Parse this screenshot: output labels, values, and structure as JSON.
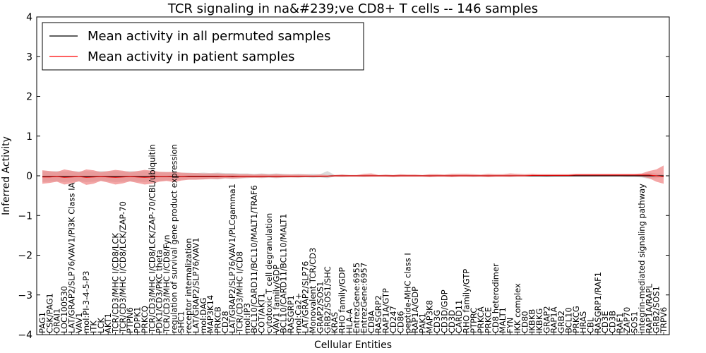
{
  "chart_data": {
    "type": "line",
    "title": "TCR signaling in na&#239;ve CD8+ T cells -- 146 samples",
    "xlabel": "Cellular Entities",
    "ylabel": "Inferred Activity",
    "ylim": [
      -4,
      4
    ],
    "yticks": [
      4,
      3,
      2,
      1,
      0,
      -1,
      -2,
      -3,
      -4
    ],
    "grid": false,
    "legend_position": "top-left",
    "categories": [
      "PAG1",
      "CSK/PAG1",
      "ORAI1",
      "LOC100530",
      "LAT/GRAP2/SLP76/VAV1/PI3K Class IA",
      "VAV1",
      "mol:PI-3-4-5-P3",
      "ITK",
      "LCK",
      "AKT1",
      "TCR/CD3/MHC I/CD8/LCK",
      "TCR/CD3/MHC I/CD8/LCK/ZAP-70",
      "PTPN6",
      "PDPK1",
      "PRKCQ",
      "TCR/CD3/MHC I/CD8/LCK/ZAP-70/CBL/ubiquitin",
      "PDK1/CD3/PKC theta",
      "TCR/CD3/MHC I/CD8/Fyn",
      "regulation of survival gene product expression",
      "SHC1",
      "receptor internalization",
      "LAT/GRAP2/SLP76/VAV1",
      "mol:DAG",
      "MAP3K14",
      "PRKCB",
      "CD28",
      "LAT/GRAP2/SLP76/VAV1/PLCgamma1",
      "TCR/CD3/MHC I/CD8",
      "mol:IP3",
      "BCL10/CARD11/BCL10/MALT1/TRAF6",
      "COT/AKT1",
      "cytotoxic T cell degranulation",
      "VAV1 family/GDP",
      "BCL10/CARD11/BCL10/MALT1",
      "RASGRP1",
      "mol:Ca2+",
      "LAT/GRAP2/SLP76",
      "Monovalent TCR/CD3",
      "GRAP2/SOS1",
      "GRB2/SOS1/SHC",
      "KRAS",
      "RHO family/GDP",
      "HLA-A",
      "EntrezGene:6955",
      "EntrezGene:6957",
      "CD8A",
      "RASGRP2",
      "RAP1A/GTP",
      "CD247",
      "CD86",
      "peptide-MHC class I",
      "RAP1A/GDP",
      "PAK1",
      "MAP3K8",
      "CD3G",
      "CD3D/GDP",
      "CD3D",
      "CARD11",
      "RHO family/GTP",
      "PTPRC",
      "PRKCA",
      "PRKCE",
      "CD8 heterodimer",
      "MALT1",
      "FYN",
      "IKK complex",
      "CD80",
      "IKBKB",
      "IKBKG",
      "GRAP2",
      "RAP1A",
      "GRB2",
      "BCL10",
      "PRKCG",
      "HRAS",
      "CBL",
      "RASGRP1/RAF1",
      "CD3E",
      "CD3B",
      "RAF1",
      "ZAP70",
      "SOS1",
      "integrin-mediated signaling pathway",
      "RAP1A/RAPL",
      "GRB2/SOS1",
      "TRPV6"
    ],
    "series": [
      {
        "name": "Mean activity in all permuted samples",
        "color": "#000000",
        "values": [
          -0.02,
          -0.02,
          -0.02,
          -0.02,
          -0.02,
          -0.02,
          -0.02,
          -0.02,
          -0.02,
          -0.02,
          -0.02,
          -0.02,
          -0.02,
          -0.02,
          -0.02,
          -0.02,
          -0.02,
          -0.02,
          -0.02,
          -0.02,
          -0.01,
          -0.01,
          -0.01,
          -0.01,
          -0.01,
          -0.01,
          -0.01,
          -0.01,
          -0.01,
          -0.01,
          -0.01,
          -0.01,
          -0.01,
          -0.01,
          -0.01,
          -0.01,
          -0.01,
          -0.01,
          -0.01,
          -0.01,
          0.0,
          0.0,
          0.0,
          0.0,
          0.0,
          0.0,
          0.0,
          0.0,
          0.0,
          0.0,
          0.0,
          0.0,
          0.0,
          0.0,
          0.0,
          0.0,
          0.0,
          0.0,
          0.0,
          0.0,
          0.0,
          0.0,
          0.0,
          0.0,
          0.0,
          0.0,
          0.0,
          0.0,
          0.0,
          0.0,
          0.0,
          0.0,
          0.0,
          0.0,
          0.0,
          0.0,
          0.0,
          0.0,
          0.0,
          0.0,
          0.0,
          0.0,
          0.0,
          0.0,
          0.0,
          0.0
        ],
        "band_low": [
          -0.16,
          -0.15,
          -0.14,
          -0.16,
          -0.15,
          -0.14,
          -0.16,
          -0.15,
          -0.13,
          -0.14,
          -0.16,
          -0.15,
          -0.14,
          -0.15,
          -0.16,
          -0.14,
          -0.13,
          -0.12,
          -0.11,
          -0.1,
          -0.09,
          -0.08,
          -0.09,
          -0.08,
          -0.09,
          -0.07,
          -0.08,
          -0.07,
          -0.06,
          -0.05,
          -0.06,
          -0.05,
          -0.06,
          -0.05,
          -0.04,
          -0.05,
          -0.04,
          -0.05,
          -0.04,
          -0.06,
          -0.02,
          -0.03,
          -0.02,
          -0.02,
          -0.03,
          -0.02,
          -0.02,
          -0.02,
          -0.03,
          -0.02,
          -0.02,
          -0.02,
          -0.02,
          -0.03,
          -0.02,
          -0.02,
          -0.03,
          -0.02,
          -0.02,
          -0.03,
          -0.02,
          -0.03,
          -0.02,
          -0.02,
          -0.03,
          -0.02,
          -0.02,
          -0.02,
          -0.02,
          -0.03,
          -0.02,
          -0.02,
          -0.02,
          -0.02,
          -0.02,
          -0.02,
          -0.02,
          -0.02,
          -0.02,
          -0.02,
          -0.03,
          -0.03,
          -0.04,
          -0.08,
          -0.06,
          -0.03
        ],
        "band_high": [
          0.12,
          0.11,
          0.12,
          0.11,
          0.12,
          0.11,
          0.12,
          0.11,
          0.12,
          0.11,
          0.12,
          0.11,
          0.12,
          0.11,
          0.12,
          0.11,
          0.1,
          0.1,
          0.09,
          0.08,
          0.08,
          0.07,
          0.08,
          0.07,
          0.08,
          0.07,
          0.07,
          0.06,
          0.06,
          0.05,
          0.06,
          0.05,
          0.06,
          0.05,
          0.04,
          0.05,
          0.04,
          0.05,
          0.04,
          0.12,
          0.02,
          0.03,
          0.02,
          0.02,
          0.02,
          0.02,
          0.02,
          0.02,
          0.02,
          0.02,
          0.02,
          0.02,
          0.02,
          0.02,
          0.02,
          0.02,
          0.02,
          0.02,
          0.02,
          0.02,
          0.02,
          0.02,
          0.02,
          0.02,
          0.02,
          0.02,
          0.02,
          0.02,
          0.02,
          0.02,
          0.02,
          0.02,
          0.02,
          0.02,
          0.02,
          0.02,
          0.02,
          0.02,
          0.02,
          0.02,
          0.02,
          0.03,
          0.04,
          0.08,
          0.06,
          0.03
        ]
      },
      {
        "name": "Mean activity in patient samples",
        "color": "#ff0000",
        "band_color": "#f08080",
        "values": [
          -0.03,
          -0.03,
          -0.02,
          -0.04,
          -0.03,
          -0.02,
          -0.04,
          -0.03,
          -0.02,
          -0.03,
          -0.04,
          -0.03,
          -0.02,
          -0.03,
          -0.04,
          -0.03,
          -0.02,
          -0.02,
          -0.03,
          -0.02,
          -0.02,
          -0.02,
          -0.02,
          -0.02,
          -0.02,
          -0.01,
          -0.02,
          -0.01,
          -0.01,
          -0.01,
          -0.01,
          -0.01,
          -0.01,
          -0.01,
          -0.01,
          -0.01,
          -0.01,
          -0.01,
          -0.01,
          -0.01,
          0.0,
          0.0,
          0.0,
          0.0,
          0.0,
          0.0,
          0.0,
          0.0,
          0.0,
          0.0,
          0.0,
          0.0,
          0.0,
          0.0,
          0.0,
          0.0,
          0.0,
          0.0,
          0.0,
          0.0,
          0.0,
          0.0,
          0.0,
          0.0,
          0.0,
          0.0,
          0.0,
          0.01,
          0.01,
          0.01,
          0.01,
          0.01,
          0.01,
          0.02,
          0.02,
          0.02,
          0.02,
          0.02,
          0.02,
          0.02,
          0.02,
          0.02,
          0.02,
          0.02,
          0.0,
          -0.02
        ],
        "band_low": [
          -0.2,
          -0.18,
          -0.15,
          -0.22,
          -0.19,
          -0.14,
          -0.23,
          -0.2,
          -0.13,
          -0.17,
          -0.22,
          -0.19,
          -0.14,
          -0.18,
          -0.22,
          -0.2,
          -0.15,
          -0.13,
          -0.16,
          -0.12,
          -0.1,
          -0.1,
          -0.09,
          -0.08,
          -0.08,
          -0.06,
          -0.07,
          -0.06,
          -0.05,
          -0.05,
          -0.05,
          -0.04,
          -0.05,
          -0.04,
          -0.04,
          -0.04,
          -0.03,
          -0.03,
          -0.03,
          -0.02,
          -0.02,
          -0.02,
          -0.02,
          -0.02,
          -0.02,
          -0.02,
          -0.02,
          -0.02,
          -0.03,
          -0.02,
          -0.02,
          -0.02,
          -0.02,
          -0.03,
          -0.02,
          -0.02,
          -0.03,
          -0.02,
          -0.02,
          -0.02,
          -0.02,
          -0.03,
          -0.02,
          -0.02,
          -0.02,
          -0.01,
          -0.01,
          -0.01,
          -0.01,
          -0.01,
          -0.01,
          -0.01,
          -0.01,
          -0.01,
          -0.01,
          -0.01,
          -0.01,
          -0.01,
          -0.01,
          -0.01,
          -0.01,
          -0.01,
          -0.02,
          -0.06,
          -0.15,
          -0.2
        ],
        "band_high": [
          0.14,
          0.12,
          0.1,
          0.16,
          0.13,
          0.09,
          0.16,
          0.14,
          0.09,
          0.12,
          0.15,
          0.13,
          0.09,
          0.12,
          0.15,
          0.13,
          0.1,
          0.09,
          0.1,
          0.08,
          0.07,
          0.07,
          0.06,
          0.06,
          0.06,
          0.05,
          0.05,
          0.04,
          0.04,
          0.03,
          0.04,
          0.03,
          0.04,
          0.03,
          0.03,
          0.03,
          0.03,
          0.02,
          0.03,
          0.02,
          0.02,
          0.03,
          0.02,
          0.02,
          0.05,
          0.06,
          0.02,
          0.03,
          0.02,
          0.04,
          0.03,
          0.03,
          0.02,
          0.04,
          0.04,
          0.03,
          0.05,
          0.05,
          0.05,
          0.04,
          0.03,
          0.05,
          0.04,
          0.04,
          0.06,
          0.05,
          0.04,
          0.05,
          0.04,
          0.04,
          0.04,
          0.04,
          0.04,
          0.05,
          0.05,
          0.05,
          0.05,
          0.05,
          0.05,
          0.05,
          0.05,
          0.05,
          0.06,
          0.12,
          0.16,
          0.26
        ]
      }
    ]
  }
}
